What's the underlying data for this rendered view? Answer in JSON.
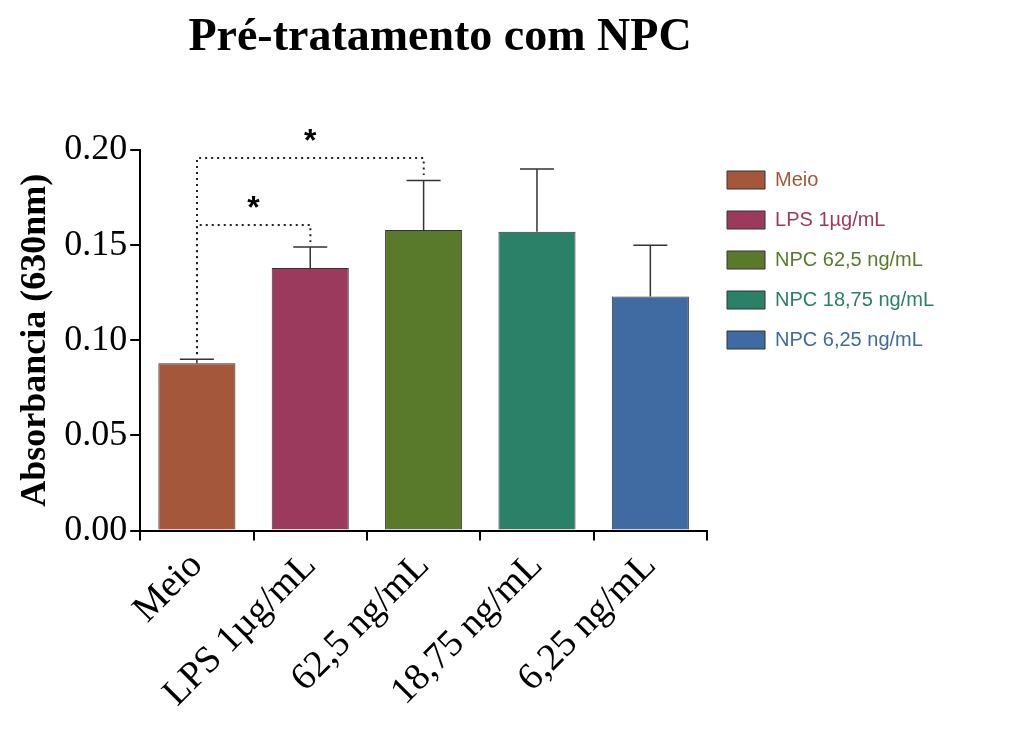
{
  "chart_data": {
    "type": "bar",
    "title": "Pré-tratamento com NPC",
    "ylabel": "Absorbancia (630nm)",
    "categories": [
      "Meio",
      "LPS 1µg/mL",
      "62,5 ng/mL",
      "18,75 ng/mL",
      "6,25 ng/mL"
    ],
    "series": [
      {
        "name": "Meio",
        "color": "#a5573b",
        "values": [
          0.088,
          null,
          null,
          null,
          null
        ],
        "errors": [
          0.002,
          null,
          null,
          null,
          null
        ]
      },
      {
        "name": "LPS 1µg/mL",
        "color": "#9c3a5e",
        "values": [
          null,
          0.138,
          null,
          null,
          null
        ],
        "errors": [
          null,
          0.011,
          null,
          null,
          null
        ]
      },
      {
        "name": "NPC 62,5 ng/mL",
        "color": "#5a7a2b",
        "values": [
          null,
          null,
          0.158,
          null,
          null
        ],
        "errors": [
          null,
          null,
          0.026,
          null,
          null
        ]
      },
      {
        "name": "NPC 18,75 ng/mL",
        "color": "#2b8068",
        "values": [
          null,
          null,
          null,
          0.157,
          null
        ],
        "errors": [
          null,
          null,
          null,
          0.033,
          null
        ]
      },
      {
        "name": "NPC 6,25 ng/mL",
        "color": "#3f6aa2",
        "values": [
          null,
          null,
          null,
          null,
          0.123
        ],
        "errors": [
          null,
          null,
          null,
          null,
          0.027
        ]
      }
    ],
    "ylim": [
      0,
      0.2
    ],
    "yticks": [
      {
        "value": 0,
        "label": "0.00"
      },
      {
        "value": 0.05,
        "label": "0.05"
      },
      {
        "value": 0.1,
        "label": "0.10"
      },
      {
        "value": 0.15,
        "label": "0.15"
      },
      {
        "value": 0.2,
        "label": "0.20"
      }
    ],
    "annotations": [
      "*",
      "*"
    ],
    "grid": false,
    "legend": "top right"
  }
}
